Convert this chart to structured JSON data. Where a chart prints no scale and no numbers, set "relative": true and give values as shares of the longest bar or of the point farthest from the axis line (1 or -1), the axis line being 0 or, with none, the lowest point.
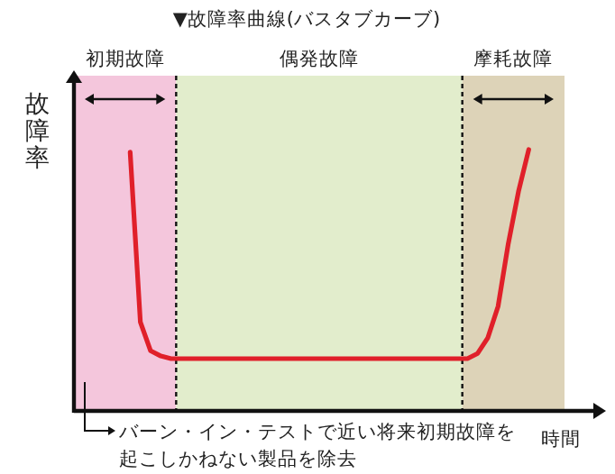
{
  "chart_data": {
    "type": "line",
    "relative": true,
    "title": "▼故障率曲線(バスタブカーブ)",
    "ylabel": "故障率",
    "xlabel": "時間",
    "categories": [
      null,
      null,
      null,
      null,
      null,
      null,
      null,
      null,
      null,
      null,
      null,
      null,
      null,
      null,
      null,
      null,
      null,
      null,
      null,
      null,
      null,
      null,
      null,
      null,
      null,
      null,
      null,
      null,
      null,
      null,
      null,
      null,
      null,
      null,
      null,
      null,
      null,
      null,
      null,
      null,
      null,
      null,
      null,
      null,
      null,
      null,
      null,
      null
    ],
    "series": [
      {
        "color": "#e0202a",
        "values": [
          null,
          null,
          null,
          null,
          null,
          0.99,
          0.34,
          0.23,
          0.21,
          0.2,
          0.2,
          0.2,
          0.2,
          0.2,
          0.2,
          0.2,
          0.2,
          0.2,
          0.2,
          0.2,
          0.2,
          0.2,
          0.2,
          0.2,
          0.2,
          0.2,
          0.2,
          0.2,
          0.2,
          0.2,
          0.2,
          0.2,
          0.2,
          0.2,
          0.2,
          0.2,
          0.2,
          0.2,
          0.2,
          0.22,
          0.28,
          0.4,
          0.64,
          0.84,
          1.0,
          null,
          null,
          null
        ]
      }
    ],
    "annotations": [
      "初期故障",
      "偶発故障",
      "摩耗故障",
      "バーン・イン・テストで近い将来初期故障を起こしかねない製品を除去"
    ]
  }
}
